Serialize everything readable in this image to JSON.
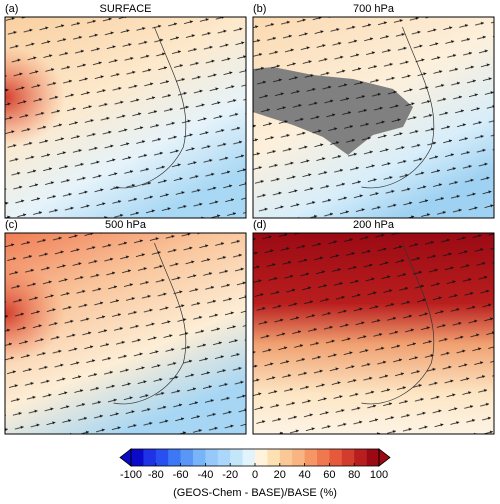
{
  "panels": [
    {
      "label": "(a)",
      "title": "SURFACE"
    },
    {
      "label": "(b)",
      "title": "700 hPa"
    },
    {
      "label": "(c)",
      "title": "500 hPa"
    },
    {
      "label": "(d)",
      "title": "200 hPa"
    }
  ],
  "colorbar": {
    "lim": [
      -100,
      100
    ],
    "ticks": [
      -100,
      -80,
      -60,
      -40,
      -20,
      0,
      20,
      40,
      60,
      80,
      100
    ],
    "colors": [
      "#0a0ac8",
      "#1e32e6",
      "#2850f0",
      "#3c78f5",
      "#5a96f5",
      "#78b4f8",
      "#96c8fa",
      "#aad7fa",
      "#c3e6fa",
      "#e2f3fb",
      "#fff3dc",
      "#fde1b4",
      "#fac896",
      "#f8b482",
      "#f59664",
      "#f07850",
      "#e65a3c",
      "#d23c2d",
      "#b91e1e",
      "#9b0a14"
    ],
    "label": "(GEOS-Chem - BASE)/BASE  (%)"
  }
}
